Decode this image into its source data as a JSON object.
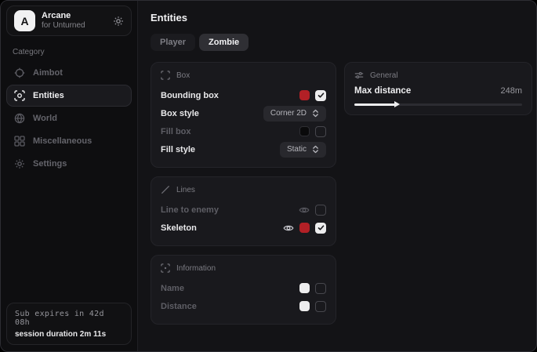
{
  "colors": {
    "accent_red": "#b22026",
    "swatch_black": "#0a0a0b",
    "swatch_white": "#ededee",
    "checkbox_checked": "#ededee"
  },
  "sidebar": {
    "brand": {
      "logo_letter": "A",
      "name": "Arcane",
      "subtitle": "for Unturned"
    },
    "category_label": "Category",
    "items": [
      {
        "label": "Aimbot",
        "icon": "crosshair-icon",
        "active": false
      },
      {
        "label": "Entities",
        "icon": "entity-scan-icon",
        "active": true
      },
      {
        "label": "World",
        "icon": "globe-icon",
        "active": false
      },
      {
        "label": "Miscellaneous",
        "icon": "grid-icon",
        "active": false
      },
      {
        "label": "Settings",
        "icon": "gear-icon",
        "active": false
      }
    ],
    "subscription": {
      "expires_text": "Sub expires in 42d 08h",
      "session_text": "session duration 2m 11s"
    }
  },
  "main": {
    "title": "Entities",
    "tabs": [
      {
        "label": "Player",
        "active": false
      },
      {
        "label": "Zombie",
        "active": true
      }
    ],
    "box_card": {
      "title": "Box",
      "rows": [
        {
          "label": "Bounding box",
          "swatch": "#b22026",
          "checked": true,
          "enabled": true
        },
        {
          "label": "Box style",
          "dropdown_value": "Corner 2D",
          "enabled": true
        },
        {
          "label": "Fill box",
          "swatch": "#0a0a0b",
          "checked": false,
          "enabled": false
        },
        {
          "label": "Fill style",
          "dropdown_value": "Static",
          "enabled": true
        }
      ]
    },
    "lines_card": {
      "title": "Lines",
      "rows": [
        {
          "label": "Line to enemy",
          "visibility_toggle": true,
          "checked": false,
          "enabled": false
        },
        {
          "label": "Skeleton",
          "visibility_toggle": true,
          "swatch": "#b22026",
          "checked": true,
          "enabled": true
        }
      ]
    },
    "information_card": {
      "title": "Information",
      "rows": [
        {
          "label": "Name",
          "swatch": "#ededee",
          "checked": false,
          "enabled": false
        },
        {
          "label": "Distance",
          "swatch": "#ededee",
          "checked": false,
          "enabled": false
        }
      ]
    },
    "general_card": {
      "title": "General",
      "slider_row": {
        "label": "Max distance",
        "value_label": "248m",
        "percent": 24.8
      }
    }
  }
}
